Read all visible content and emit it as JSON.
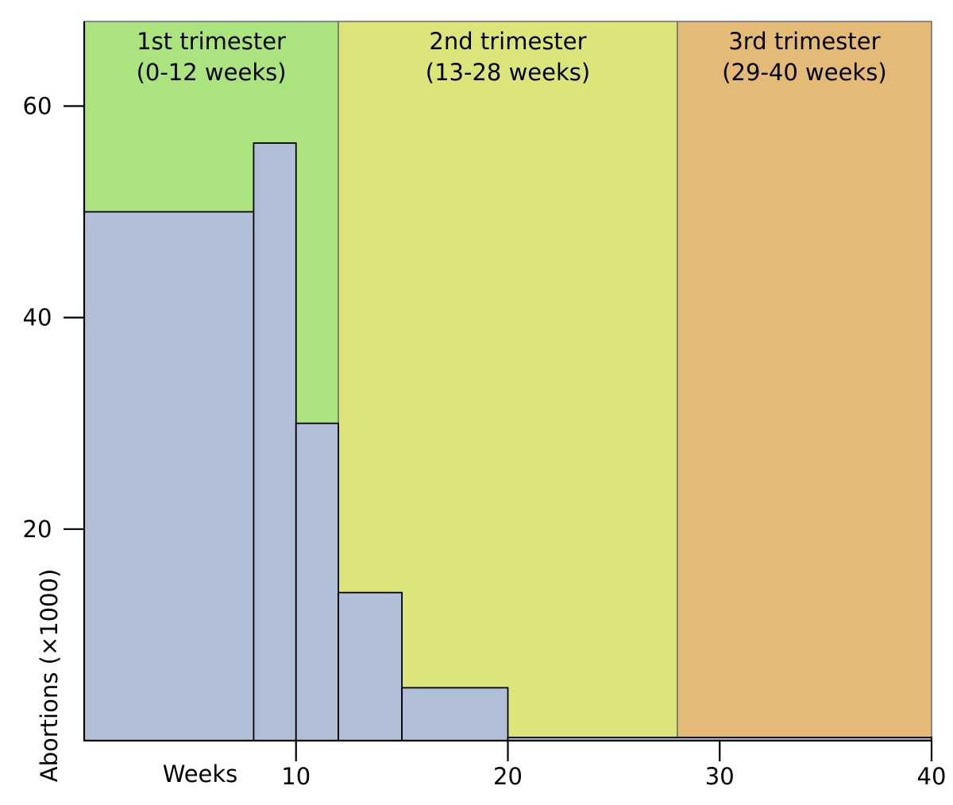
{
  "chart_data": {
    "type": "bar",
    "ylabel": "Abortions (×1000)",
    "xlabel": "Weeks",
    "xlim": [
      0,
      40
    ],
    "ylim": [
      0,
      68
    ],
    "x_ticks": [
      10,
      20,
      30,
      40
    ],
    "y_ticks": [
      20,
      40,
      60
    ],
    "bins": [
      {
        "start": 0,
        "end": 8,
        "value": 50
      },
      {
        "start": 8,
        "end": 10,
        "value": 56.5
      },
      {
        "start": 10,
        "end": 12,
        "value": 30
      },
      {
        "start": 12,
        "end": 15,
        "value": 14
      },
      {
        "start": 15,
        "end": 20,
        "value": 5
      },
      {
        "start": 20,
        "end": 40,
        "value": 0.3
      }
    ],
    "trimesters": [
      {
        "line1": "1st trimester",
        "line2": "(0-12 weeks)",
        "start": 0,
        "end": 12,
        "color": "#abe37f"
      },
      {
        "line1": "2nd trimester",
        "line2": "(13-28 weeks)",
        "start": 12,
        "end": 28,
        "color": "#dbe579"
      },
      {
        "line1": "3rd trimester",
        "line2": "(29-40 weeks)",
        "start": 28,
        "end": 40,
        "color": "#e4bb76"
      }
    ],
    "bar_color": "#b2bfd9",
    "grid": false
  }
}
